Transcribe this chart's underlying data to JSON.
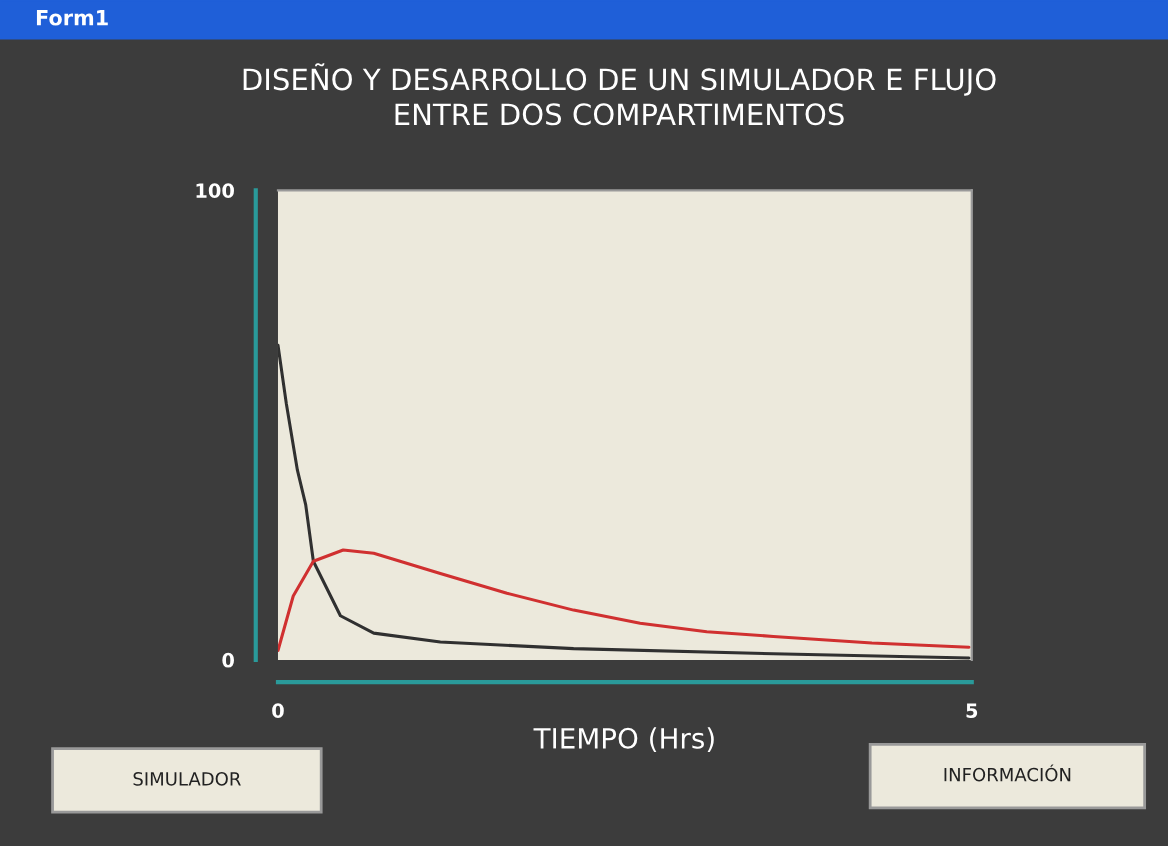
{
  "chart_data": {
    "type": "line",
    "title": "DISEÑO Y DESARROLLO DE UN SIMULADOR E FLUJO\nENTRE DOS COMPARTIMENTOS",
    "xlabel": "TIEMPO (Hrs)",
    "annotations": [
      "Form1",
      "SIMULADOR",
      "INFORMACIÓN"
    ],
    "xlim": [
      0,
      5
    ],
    "ylim": [
      0,
      100
    ],
    "xticks": [
      0,
      5
    ],
    "yticks": [
      0,
      100
    ],
    "grid": false,
    "legend": false,
    "marker": "none",
    "line_style": "solid",
    "series": [
      {
        "color": "#303030",
        "x": [
          0,
          0.06,
          0.14,
          0.2,
          0.255,
          0.45,
          0.69,
          1.17,
          2.13,
          3.57,
          4.98
        ],
        "values": [
          67,
          54.6,
          40.4,
          33,
          21,
          9.4,
          5.7,
          3.8,
          2.4,
          1.3,
          0.4
        ]
      },
      {
        "color": "#d03030",
        "x": [
          0,
          0.11,
          0.255,
          0.47,
          0.69,
          1.17,
          1.65,
          2.13,
          2.61,
          3.09,
          3.57,
          4.28,
          4.98
        ],
        "values": [
          2,
          13.6,
          21,
          23.4,
          22.7,
          18.4,
          14.2,
          10.6,
          7.8,
          6,
          5,
          3.6,
          2.7
        ]
      }
    ]
  }
}
